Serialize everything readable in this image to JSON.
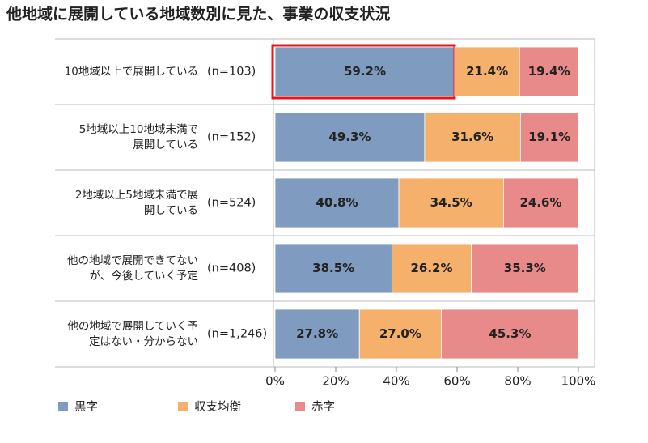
{
  "chart_data": {
    "type": "stacked-bar-horizontal",
    "title": "他地域に展開している地域数別に見た、事業の収支状況",
    "categories": [
      "10地域以上で展開している",
      "5地域以上10地域未満で展開している",
      "2地域以上5地域未満で展開している",
      "他の地域で展開できてないが、今後していく予定",
      "他の地域で展開していく予定はない・分からない"
    ],
    "sample_sizes": [
      "(n=103)",
      "(n=152)",
      "(n=524)",
      "(n=408)",
      "(n=1,246)"
    ],
    "series": [
      {
        "name": "黒字",
        "color": "#7f9cc0",
        "values": [
          59.2,
          49.3,
          40.8,
          38.5,
          27.8
        ],
        "value_labels": [
          "59.2%",
          "49.3%",
          "40.8%",
          "38.5%",
          "27.8%"
        ]
      },
      {
        "name": "収支均衡",
        "color": "#f5b06b",
        "values": [
          21.4,
          31.6,
          34.5,
          26.2,
          27.0
        ],
        "value_labels": [
          "21.4%",
          "31.6%",
          "34.5%",
          "26.2%",
          "27.0%"
        ]
      },
      {
        "name": "赤字",
        "color": "#e98a8a",
        "values": [
          19.4,
          19.1,
          24.6,
          35.3,
          45.3
        ],
        "value_labels": [
          "19.4%",
          "19.1%",
          "24.6%",
          "35.3%",
          "45.3%"
        ]
      }
    ],
    "xlim": [
      0,
      100
    ],
    "xticks": [
      {
        "value": 0,
        "label": "0%"
      },
      {
        "value": 20,
        "label": "20%"
      },
      {
        "value": 40,
        "label": "40%"
      },
      {
        "value": 60,
        "label": "60%"
      },
      {
        "value": 80,
        "label": "80%"
      },
      {
        "value": 100,
        "label": "100%"
      }
    ]
  }
}
